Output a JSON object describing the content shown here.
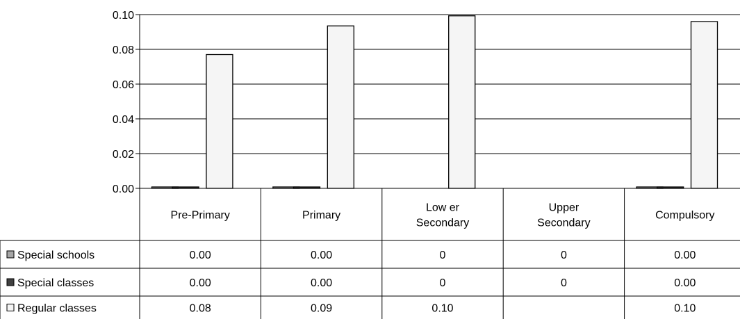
{
  "chart_data": {
    "type": "bar",
    "categories": [
      [
        "Pre-Primary"
      ],
      [
        "Primary"
      ],
      [
        "Low er",
        "Secondary"
      ],
      [
        "Upper",
        "Secondary"
      ],
      [
        "Compulsory"
      ]
    ],
    "series": [
      {
        "name": "Special schools",
        "color": "#a6a6a6",
        "values": [
          0.0008,
          0.0008,
          null,
          null,
          0.0008
        ]
      },
      {
        "name": "Special classes",
        "color": "#404040",
        "values": [
          0.0008,
          0.0008,
          null,
          null,
          0.0008
        ]
      },
      {
        "name": "Regular classes",
        "color": "#f5f5f5",
        "values": [
          0.077,
          0.0935,
          0.0993,
          null,
          0.096
        ]
      }
    ],
    "table": [
      [
        "0.00",
        "0.00",
        "0",
        "0",
        "0.00"
      ],
      [
        "0.00",
        "0.00",
        "0",
        "0",
        "0.00"
      ],
      [
        "0.08",
        "0.09",
        "0.10",
        "",
        "0.10"
      ]
    ],
    "y_ticks": [
      "0.00",
      "0.02",
      "0.04",
      "0.06",
      "0.08",
      "0.10"
    ],
    "ylim": [
      0,
      0.1
    ],
    "grid": true,
    "legend": "left of data table"
  }
}
